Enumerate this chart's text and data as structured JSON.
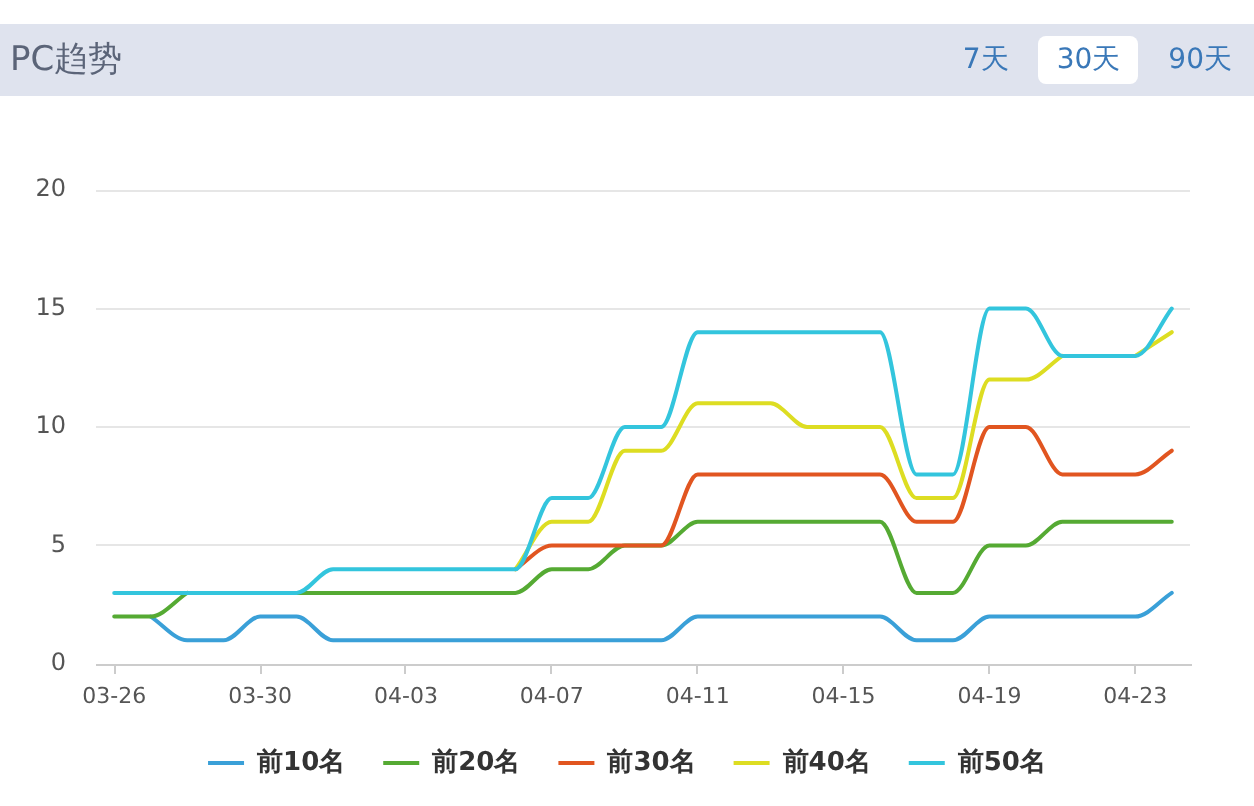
{
  "chart_data": {
    "type": "line",
    "title": "PC趋势",
    "annotations": [
      "7天",
      "30天",
      "90天"
    ],
    "categories": [
      "03-26",
      null,
      null,
      null,
      "03-30",
      null,
      null,
      null,
      "04-03",
      null,
      null,
      null,
      "04-07",
      null,
      null,
      null,
      "04-11",
      null,
      null,
      null,
      "04-15",
      null,
      null,
      null,
      "04-19",
      null,
      null,
      null,
      "04-23",
      null
    ],
    "series": [
      {
        "name": "前10名",
        "color": "#3aa0d8",
        "values": [
          null,
          2,
          1,
          1,
          2,
          2,
          1,
          1,
          1,
          1,
          1,
          1,
          1,
          1,
          1,
          1,
          2,
          2,
          2,
          2,
          2,
          2,
          1,
          1,
          2,
          2,
          2,
          2,
          2,
          3
        ]
      },
      {
        "name": "前20名",
        "color": "#55aa33",
        "values": [
          2,
          2,
          3,
          null,
          null,
          3,
          3,
          3,
          3,
          3,
          3,
          3,
          4,
          4,
          5,
          5,
          6,
          6,
          6,
          6,
          6,
          6,
          3,
          3,
          5,
          5,
          6,
          6,
          6,
          6
        ]
      },
      {
        "name": "前30名",
        "color": "#e15520",
        "values": [
          null,
          null,
          null,
          null,
          null,
          null,
          null,
          null,
          null,
          null,
          null,
          4,
          5,
          5,
          5,
          5,
          8,
          8,
          8,
          8,
          8,
          8,
          6,
          6,
          10,
          10,
          8,
          8,
          8,
          9
        ]
      },
      {
        "name": "前40名",
        "color": "#dddd22",
        "values": [
          null,
          null,
          null,
          null,
          null,
          null,
          null,
          null,
          null,
          null,
          null,
          4,
          6,
          6,
          9,
          9,
          11,
          11,
          11,
          10,
          10,
          10,
          7,
          7,
          12,
          12,
          13,
          null,
          13,
          14
        ]
      },
      {
        "name": "前50名",
        "color": "#33c5dd",
        "values": [
          3,
          3,
          3,
          3,
          3,
          3,
          4,
          4,
          4,
          4,
          4,
          4,
          7,
          7,
          10,
          10,
          14,
          14,
          14,
          14,
          14,
          14,
          8,
          8,
          15,
          15,
          13,
          13,
          13,
          15
        ]
      }
    ],
    "ylim": [
      0,
      20
    ],
    "yticks": [
      0,
      5,
      10,
      15,
      20
    ],
    "grid": "y",
    "legend": "bottom",
    "marker": "none"
  }
}
